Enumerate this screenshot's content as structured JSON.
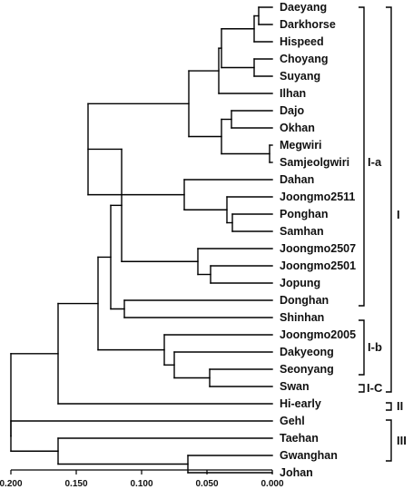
{
  "leaves": [
    "Daeyang",
    "Darkhorse",
    "Hispeed",
    "Choyang",
    "Suyang",
    "Ilhan",
    "Dajo",
    "Okhan",
    "Megwiri",
    "Samjeolgwiri",
    "Dahan",
    "Joongmo2511",
    "Ponghan",
    "Samhan",
    "Joongmo2507",
    "Joongmo2501",
    "Jopung",
    "Donghan",
    "Shinhan",
    "Joongmo2005",
    "Dakyeong",
    "Seonyang",
    "Swan",
    "Hi-early",
    "Gehl",
    "Taehan",
    "Gwanghan",
    "Johan"
  ],
  "clusters": {
    "Ia": "I-a",
    "Ib": "I-b",
    "Ic": "I-C",
    "I": "I",
    "II": "II",
    "III": "III"
  },
  "axis": {
    "ticks": [
      "0.200",
      "0.150",
      "0.100",
      "0.050",
      "0.000"
    ]
  }
}
